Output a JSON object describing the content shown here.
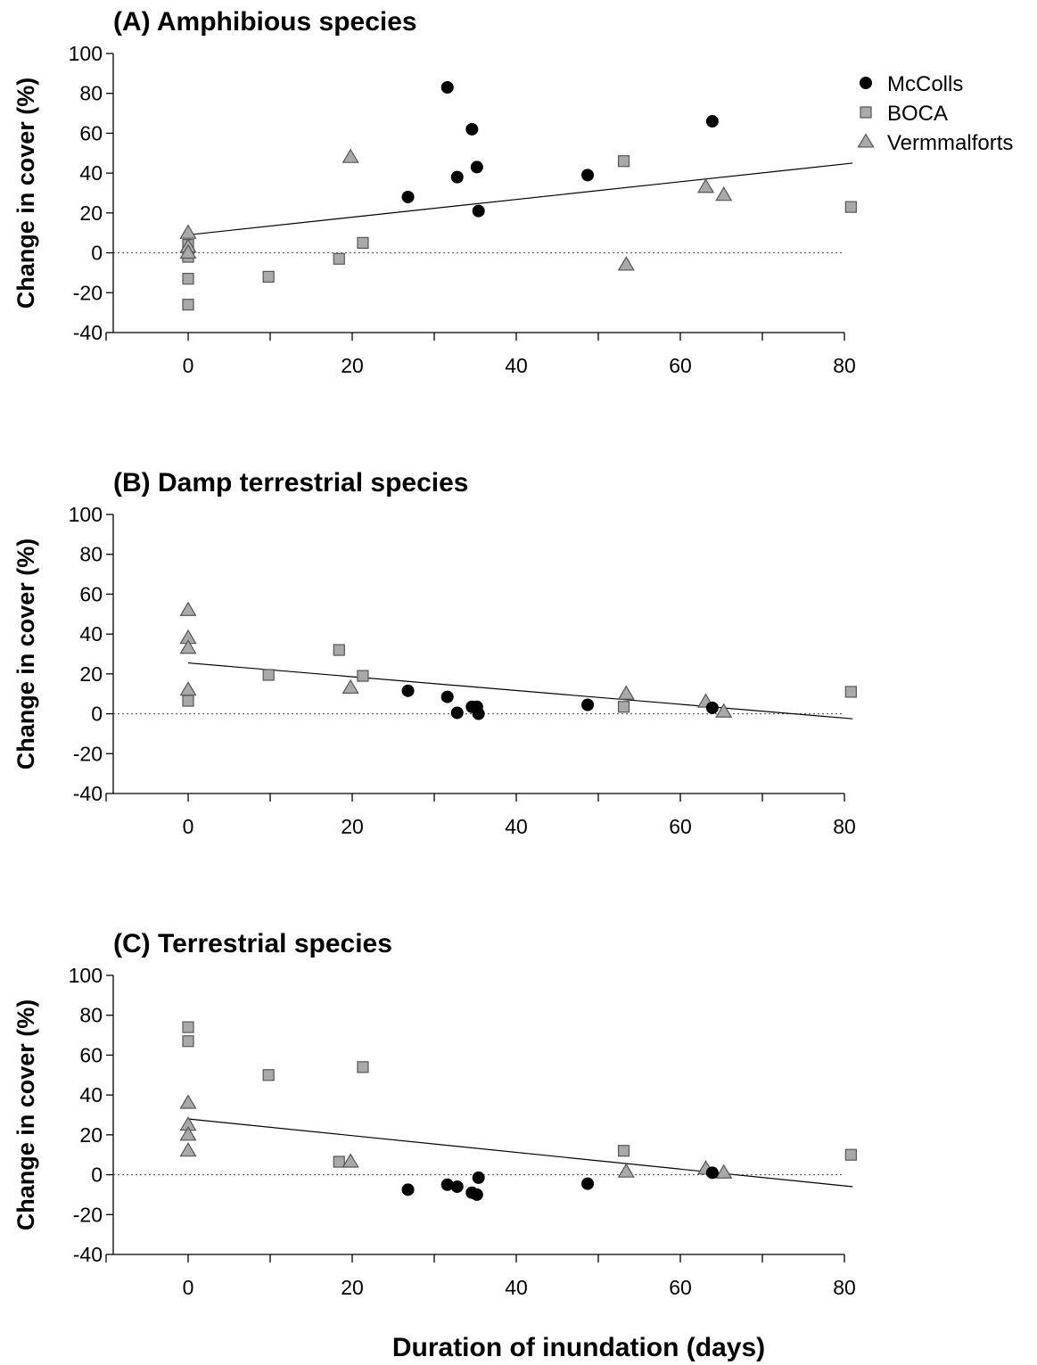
{
  "legend": [
    {
      "name": "McColls",
      "marker": "circle",
      "fill": "#000000"
    },
    {
      "name": "BOCA",
      "marker": "square",
      "fill": "#a9a9a9"
    },
    {
      "name": "Vermmalforts",
      "marker": "triangle",
      "fill": "#a9a9a9"
    }
  ],
  "x_axis_title": "Duration of inundation (days)",
  "chart_data": [
    {
      "type": "scatter",
      "title": "(A) Amphibious species",
      "ylabel": "Change in cover (%)",
      "xlabel": "",
      "xlim": [
        -10,
        80
      ],
      "ylim": [
        -40,
        100
      ],
      "xticks": [
        0,
        20,
        40,
        60,
        80
      ],
      "xticks_minor": [
        -10,
        10,
        30,
        50,
        70
      ],
      "yticks": [
        -40,
        -20,
        0,
        20,
        40,
        60,
        80,
        100
      ],
      "reference_line_y": 0,
      "trend": {
        "x": [
          0,
          81
        ],
        "y": [
          9,
          45
        ]
      },
      "series": [
        {
          "name": "McColls",
          "points": [
            [
              26.8,
              28
            ],
            [
              31.6,
              83
            ],
            [
              32.8,
              38
            ],
            [
              34.6,
              62
            ],
            [
              35.2,
              43
            ],
            [
              35.4,
              21
            ],
            [
              48.7,
              39
            ],
            [
              63.9,
              66
            ]
          ]
        },
        {
          "name": "BOCA",
          "points": [
            [
              0,
              -26
            ],
            [
              0,
              -13
            ],
            [
              0,
              -2
            ],
            [
              0,
              4
            ],
            [
              9.8,
              -12
            ],
            [
              18.4,
              -3
            ],
            [
              21.3,
              5
            ],
            [
              53.1,
              46
            ],
            [
              80.8,
              23
            ]
          ]
        },
        {
          "name": "Vermmalforts",
          "points": [
            [
              0,
              10
            ],
            [
              0,
              3
            ],
            [
              0,
              0
            ],
            [
              19.8,
              48
            ],
            [
              53.4,
              -6
            ],
            [
              63.1,
              33
            ],
            [
              65.3,
              29
            ]
          ]
        }
      ]
    },
    {
      "type": "scatter",
      "title": "(B) Damp terrestrial species",
      "ylabel": "Change in cover (%)",
      "xlabel": "",
      "xlim": [
        -10,
        80
      ],
      "ylim": [
        -40,
        100
      ],
      "xticks": [
        0,
        20,
        40,
        60,
        80
      ],
      "xticks_minor": [
        -10,
        10,
        30,
        50,
        70
      ],
      "yticks": [
        -40,
        -20,
        0,
        20,
        40,
        60,
        80,
        100
      ],
      "reference_line_y": 0,
      "trend": {
        "x": [
          0,
          81
        ],
        "y": [
          25.5,
          -2.5
        ]
      },
      "series": [
        {
          "name": "McColls",
          "points": [
            [
              26.8,
              11.5
            ],
            [
              31.6,
              8.5
            ],
            [
              32.8,
              0.5
            ],
            [
              34.6,
              3.5
            ],
            [
              35.2,
              3.5
            ],
            [
              35.4,
              0
            ],
            [
              48.7,
              4.5
            ],
            [
              63.9,
              3
            ]
          ]
        },
        {
          "name": "BOCA",
          "points": [
            [
              0,
              6.5
            ],
            [
              9.8,
              19.5
            ],
            [
              18.4,
              32
            ],
            [
              21.3,
              19
            ],
            [
              53.1,
              3.5
            ],
            [
              80.8,
              11
            ]
          ]
        },
        {
          "name": "Vermmalforts",
          "points": [
            [
              0,
              52
            ],
            [
              0,
              38
            ],
            [
              0,
              33
            ],
            [
              0,
              12
            ],
            [
              19.8,
              13
            ],
            [
              53.4,
              10
            ],
            [
              63.1,
              6
            ],
            [
              65.3,
              1
            ]
          ]
        }
      ]
    },
    {
      "type": "scatter",
      "title": "(C) Terrestrial species",
      "ylabel": "Change in cover (%)",
      "xlabel": "",
      "xlim": [
        -10,
        80
      ],
      "ylim": [
        -40,
        100
      ],
      "xticks": [
        0,
        20,
        40,
        60,
        80
      ],
      "xticks_minor": [
        -10,
        10,
        30,
        50,
        70
      ],
      "yticks": [
        -40,
        -20,
        0,
        20,
        40,
        60,
        80,
        100
      ],
      "reference_line_y": 0,
      "trend": {
        "x": [
          0,
          81
        ],
        "y": [
          28,
          -6
        ]
      },
      "series": [
        {
          "name": "McColls",
          "points": [
            [
              26.8,
              -7.5
            ],
            [
              31.6,
              -5
            ],
            [
              32.8,
              -6
            ],
            [
              34.6,
              -9
            ],
            [
              35.2,
              -10
            ],
            [
              35.4,
              -1.5
            ],
            [
              48.7,
              -4.5
            ],
            [
              63.9,
              1
            ]
          ]
        },
        {
          "name": "BOCA",
          "points": [
            [
              0,
              74
            ],
            [
              0,
              67
            ],
            [
              9.8,
              50
            ],
            [
              18.4,
              6.5
            ],
            [
              21.3,
              54
            ],
            [
              53.1,
              12
            ],
            [
              80.8,
              10
            ]
          ]
        },
        {
          "name": "Vermmalforts",
          "points": [
            [
              0,
              36
            ],
            [
              0,
              25
            ],
            [
              0,
              20
            ],
            [
              0,
              12
            ],
            [
              19.8,
              6.5
            ],
            [
              53.4,
              1.5
            ],
            [
              63.1,
              3
            ],
            [
              65.3,
              1
            ]
          ]
        }
      ]
    }
  ]
}
